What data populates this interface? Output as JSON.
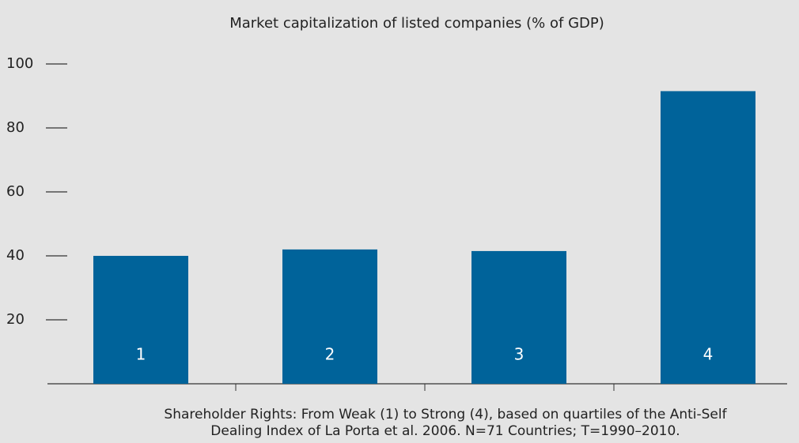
{
  "chart_data": {
    "type": "bar",
    "title": "Market capitalization of listed companies (% of GDP)",
    "categories": [
      "1",
      "2",
      "3",
      "4"
    ],
    "values": [
      40,
      42,
      41.5,
      91.5
    ],
    "color": "#00639a",
    "ylim": [
      0,
      100
    ],
    "yticks": [
      20,
      40,
      60,
      80,
      100
    ],
    "note": [
      "Shareholder Rights: From Weak (1) to Strong (4), based on quartiles of the Anti-Self",
      "Dealing Index of La Porta et al. 2006. N=71 Countries; T=1990–2010."
    ]
  }
}
